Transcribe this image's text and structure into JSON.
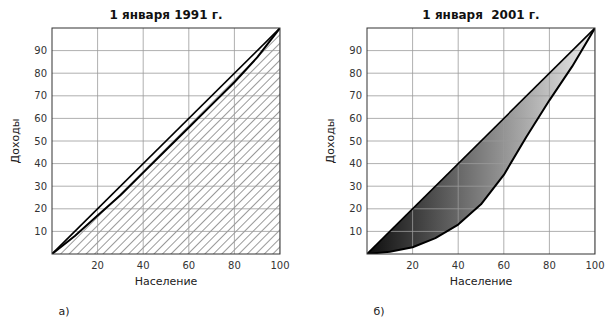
{
  "chart_data": [
    {
      "type": "line",
      "title": "1 января 1991 г.",
      "x_label": "Население",
      "y_label": "Доходы",
      "annotations": [
        "а)"
      ],
      "x": [
        0,
        10,
        20,
        30,
        40,
        50,
        60,
        70,
        80,
        90,
        100
      ],
      "series": [
        {
          "color": "#000000",
          "values": [
            0,
            8,
            17,
            26,
            36,
            46,
            56,
            66,
            76,
            87,
            100
          ]
        }
      ],
      "xlim": [
        0,
        100
      ],
      "ylim": [
        0,
        100
      ],
      "xticks": [
        20,
        40,
        60,
        80,
        100
      ],
      "yticks": [
        10,
        20,
        30,
        40,
        50,
        60,
        70,
        80,
        90
      ],
      "grid": true
    },
    {
      "type": "line",
      "title": "1 января  2001 г.",
      "x_label": "Население",
      "y_label": "Доходы",
      "annotations": [
        "б)"
      ],
      "x": [
        0,
        10,
        20,
        30,
        40,
        50,
        60,
        70,
        80,
        90,
        100
      ],
      "series": [
        {
          "color": "#000000",
          "values": [
            0,
            1,
            3,
            7,
            13,
            22,
            35,
            52,
            68,
            83,
            100
          ]
        }
      ],
      "xlim": [
        0,
        100
      ],
      "ylim": [
        0,
        100
      ],
      "xticks": [
        20,
        40,
        60,
        80,
        100
      ],
      "yticks": [
        10,
        20,
        30,
        40,
        50,
        60,
        70,
        80,
        90
      ],
      "grid": true
    }
  ]
}
